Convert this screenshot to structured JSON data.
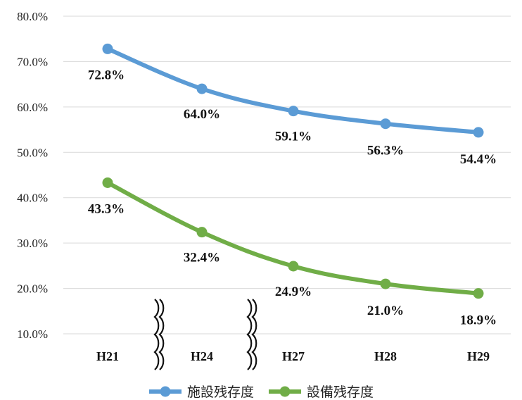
{
  "chart_data": {
    "type": "line",
    "categories": [
      "H21",
      "H24",
      "H27",
      "H28",
      "H29"
    ],
    "y_ticks": [
      "80.0%",
      "70.0%",
      "60.0%",
      "50.0%",
      "40.0%",
      "30.0%",
      "20.0%",
      "10.0%"
    ],
    "ylim": [
      10,
      80
    ],
    "grid": true,
    "legend_position": "bottom",
    "axis_breaks_between": [
      [
        "H21",
        "H24"
      ],
      [
        "H24",
        "H27"
      ]
    ],
    "series": [
      {
        "name": "施設残存度",
        "color": "#5b9bd5",
        "values": [
          72.8,
          64.0,
          59.1,
          56.3,
          54.4
        ],
        "labels": [
          "72.8%",
          "64.0%",
          "59.1%",
          "56.3%",
          "54.4%"
        ]
      },
      {
        "name": "設備残存度",
        "color": "#70ad47",
        "values": [
          43.3,
          32.4,
          24.9,
          21.0,
          18.9
        ],
        "labels": [
          "43.3%",
          "32.4%",
          "24.9%",
          "21.0%",
          "18.9%"
        ]
      }
    ]
  }
}
